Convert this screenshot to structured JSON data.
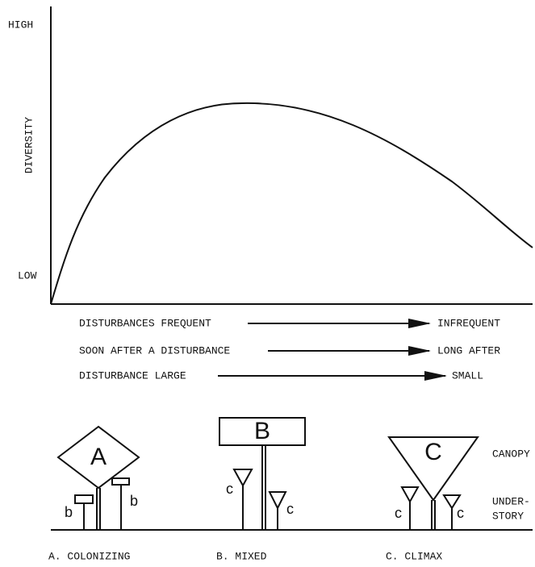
{
  "axis": {
    "high": "HIGH",
    "low": "LOW",
    "label": "DIVERSITY"
  },
  "gradients": [
    {
      "left": "DISTURBANCES FREQUENT",
      "right": "INFREQUENT"
    },
    {
      "left": "SOON AFTER A DISTURBANCE",
      "right": "LONG AFTER"
    },
    {
      "left": "DISTURBANCE LARGE",
      "right": "SMALL"
    }
  ],
  "trees": [
    {
      "canopy": "A",
      "understory": [
        "b",
        "b"
      ],
      "caption": "A. COLONIZING"
    },
    {
      "canopy": "B",
      "understory": [
        "c",
        "c"
      ],
      "caption": "B.  MIXED"
    },
    {
      "canopy": "C",
      "understory": [
        "c",
        "c"
      ],
      "caption": "C. CLIMAX"
    }
  ],
  "layers": {
    "canopy": "CANOPY",
    "understory": [
      "UNDER-",
      "STORY"
    ]
  }
}
